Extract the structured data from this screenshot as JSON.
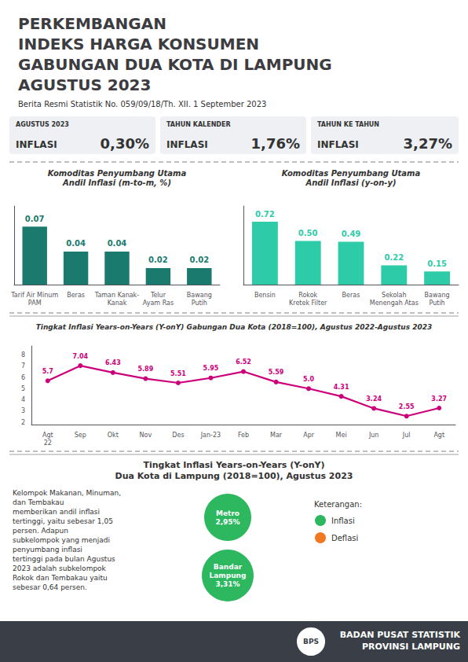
{
  "title": "PERKEMBANGAN\nINDEKS HARGA KONSUMEN\nGABUNGAN DUA KOTA DI LAMPUNG\nAGUSTUS 2023",
  "subtitle": "Berita Resmi Statistik No. 059/09/18/Th. XII. 1 September 2023",
  "annotations": {
    "boxes": [
      [
        "AGUSTUS 2023",
        "INFLASI",
        "0,30%"
      ],
      [
        "TAHUN KALENDER",
        "INFLASI",
        "1,76%"
      ],
      [
        "TAHUN KE TAHUN",
        "INFLASI",
        "3,27%"
      ]
    ],
    "map_title": [
      "Tingkat Inflasi Years-on-Years (Y-onY)",
      "Dua Kota di Lampung (2018=100), Agustus 2023"
    ],
    "description": [
      "Kelompok Makanan, Minuman,",
      "dan Tembakau",
      "memberikan andil inflasi",
      "tertinggi, yaitu sebesar 1,05",
      "persen. Adapun",
      "subkelompok yang menjadi",
      "penyumbang inflasi",
      "tertinggi pada bulan Agustus",
      "2023 adalah subkelompok",
      "Rokok dan Tembakau yaitu",
      "sebesar 0,64 persen."
    ],
    "cities": [
      {
        "text": "Metro\n2,95%",
        "color": "#2db860"
      },
      {
        "text": "Bandar\nLampung\n3,31%",
        "color": "#2db860"
      }
    ],
    "legend": {
      "title": "Keterangan:",
      "items": [
        {
          "text": "Inflasi",
          "color": "#2db860"
        },
        {
          "text": "Deflasi",
          "color": "#f07820"
        }
      ]
    },
    "footer": [
      "BADAN PUSAT STATISTIK",
      "PROVINSI LAMPUNG"
    ],
    "logo": "BPS"
  },
  "chart_data": [
    {
      "type": "bar",
      "title": "Komoditas Penyumbang Utama\nAndil Inflasi (m-to-m, %)",
      "categories": [
        "Tarif Air Minum\nPAM",
        "Beras",
        "Taman Kanak-\nKanak",
        "Telur\nAyam Ras",
        "Bawang\nPutih"
      ],
      "values": [
        0.07,
        0.04,
        0.04,
        0.02,
        0.02
      ],
      "color": "#1a7a6e",
      "ylim": [
        0,
        0.095
      ],
      "yticks": [],
      "tick_labels": "x",
      "grid": false,
      "data_labels": true
    },
    {
      "type": "bar",
      "title": "Komoditas Penyumbang Utama\nAndil Inflasi (y-on-y)",
      "categories": [
        "Bensin",
        "Rokok\nKretek Filter",
        "Beras",
        "Sekolah\nMenengah Atas",
        "Bawang\nPutih"
      ],
      "values": [
        0.72,
        0.5,
        0.49,
        0.22,
        0.15
      ],
      "value_labels": [
        "0.72",
        "0.50",
        "0.49",
        "0.22",
        "0.15"
      ],
      "color": "#2ecba8",
      "ylim": [
        0,
        0.9
      ],
      "yticks": [],
      "tick_labels": "x",
      "grid": false,
      "data_labels": true
    },
    {
      "type": "line",
      "title": "Tingkat Inflasi Years-on-Years (Y-onY) Gabungan Dua Kota (2018=100), Agustus 2022-Agustus 2023",
      "categories": [
        "Agt\n22",
        "Sep",
        "Okt",
        "Nov",
        "Des",
        "Jan-23",
        "Feb",
        "Mar",
        "Apr",
        "Mei",
        "Jun",
        "Jul",
        "Agt"
      ],
      "values": [
        5.7,
        7.04,
        6.43,
        5.89,
        5.51,
        5.95,
        6.52,
        5.59,
        5.0,
        4.31,
        3.24,
        2.55,
        3.27
      ],
      "value_labels": [
        "5.7",
        "7.04",
        "6.43",
        "5.89",
        "5.51",
        "5.95",
        "6.52",
        "5.59",
        "5.0",
        "4.31",
        "3.24",
        "2.55",
        "3.27"
      ],
      "color": "#cc007a",
      "marker": "circle",
      "ylim": [
        1.8,
        8.8
      ],
      "yticks": [
        2,
        3,
        4,
        5,
        6,
        7,
        8
      ],
      "grid": false,
      "data_labels": true
    }
  ]
}
